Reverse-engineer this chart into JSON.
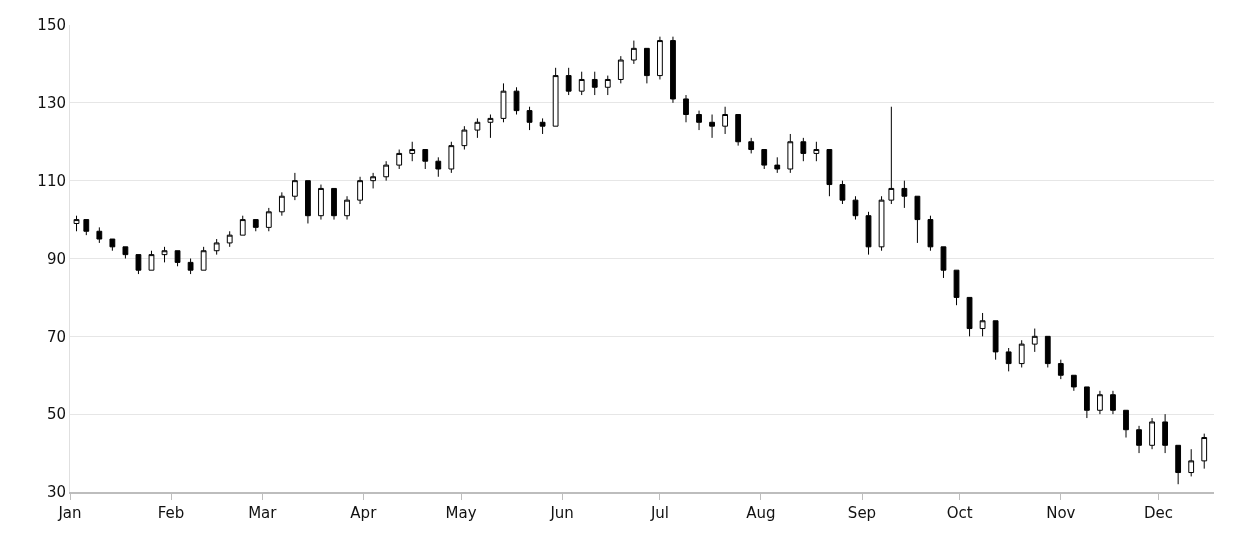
{
  "chart_data": {
    "type": "candlestick",
    "color": "#000000",
    "x": [
      "--01-03",
      "--01-06",
      "--01-10",
      "--01-14",
      "--01-18",
      "--01-22",
      "--01-26",
      "--01-30",
      "--02-03",
      "--02-07",
      "--02-11",
      "--02-15",
      "--02-19",
      "--02-23",
      "--02-27",
      "--03-03",
      "--03-07",
      "--03-11",
      "--03-15",
      "--03-19",
      "--03-23",
      "--03-27",
      "--03-31",
      "--04-04",
      "--04-08",
      "--04-12",
      "--04-16",
      "--04-20",
      "--04-24",
      "--04-28",
      "--05-02",
      "--05-06",
      "--05-10",
      "--05-14",
      "--05-18",
      "--05-22",
      "--05-26",
      "--05-30",
      "--06-03",
      "--06-07",
      "--06-11",
      "--06-15",
      "--06-19",
      "--06-23",
      "--06-27",
      "--07-01",
      "--07-05",
      "--07-09",
      "--07-13",
      "--07-17",
      "--07-21",
      "--07-25",
      "--07-29",
      "--08-02",
      "--08-06",
      "--08-10",
      "--08-14",
      "--08-18",
      "--08-22",
      "--08-26",
      "--08-30",
      "--09-03",
      "--09-07",
      "--09-10",
      "--09-14",
      "--09-18",
      "--09-22",
      "--09-26",
      "--09-30",
      "--10-04",
      "--10-08",
      "--10-12",
      "--10-16",
      "--10-20",
      "--10-24",
      "--10-28",
      "--11-01",
      "--11-05",
      "--11-09",
      "--11-13",
      "--11-17",
      "--11-21",
      "--11-25",
      "--11-29",
      "--12-03",
      "--12-07",
      "--12-11",
      "--12-15"
    ],
    "ohlc": [
      [
        99,
        101,
        97,
        100
      ],
      [
        100,
        100,
        96,
        97
      ],
      [
        97,
        98,
        94,
        95
      ],
      [
        95,
        95,
        92,
        93
      ],
      [
        93,
        93,
        90,
        91
      ],
      [
        91,
        91,
        86,
        87
      ],
      [
        87,
        92,
        87,
        91
      ],
      [
        91,
        93,
        89,
        92
      ],
      [
        92,
        92,
        88,
        89
      ],
      [
        89,
        90,
        86,
        87
      ],
      [
        87,
        93,
        87,
        92
      ],
      [
        92,
        95,
        91,
        94
      ],
      [
        94,
        97,
        93,
        96
      ],
      [
        96,
        101,
        96,
        100
      ],
      [
        100,
        100,
        97,
        98
      ],
      [
        98,
        103,
        97,
        102
      ],
      [
        102,
        107,
        101,
        106
      ],
      [
        106,
        112,
        105,
        110
      ],
      [
        110,
        110,
        99,
        101
      ],
      [
        101,
        109,
        100,
        108
      ],
      [
        108,
        108,
        100,
        101
      ],
      [
        101,
        106,
        100,
        105
      ],
      [
        105,
        111,
        104,
        110
      ],
      [
        110,
        112,
        108,
        111
      ],
      [
        111,
        115,
        110,
        114
      ],
      [
        114,
        118,
        113,
        117
      ],
      [
        117,
        120,
        115,
        118
      ],
      [
        118,
        118,
        113,
        115
      ],
      [
        115,
        116,
        111,
        113
      ],
      [
        113,
        120,
        112,
        119
      ],
      [
        119,
        124,
        118,
        123
      ],
      [
        123,
        126,
        121,
        125
      ],
      [
        125,
        127,
        121,
        126
      ],
      [
        126,
        135,
        125,
        133
      ],
      [
        133,
        134,
        127,
        128
      ],
      [
        128,
        129,
        123,
        125
      ],
      [
        125,
        126,
        122,
        124
      ],
      [
        124,
        139,
        124,
        137
      ],
      [
        137,
        139,
        132,
        133
      ],
      [
        133,
        138,
        132,
        136
      ],
      [
        136,
        138,
        132,
        134
      ],
      [
        134,
        137,
        132,
        136
      ],
      [
        136,
        142,
        135,
        141
      ],
      [
        141,
        146,
        140,
        144
      ],
      [
        144,
        144,
        135,
        137
      ],
      [
        137,
        147,
        136,
        146
      ],
      [
        146,
        147,
        130,
        131
      ],
      [
        131,
        132,
        125,
        127
      ],
      [
        127,
        128,
        123,
        125
      ],
      [
        125,
        127,
        121,
        124
      ],
      [
        124,
        129,
        122,
        127
      ],
      [
        127,
        127,
        119,
        120
      ],
      [
        120,
        121,
        117,
        118
      ],
      [
        118,
        118,
        113,
        114
      ],
      [
        114,
        116,
        112,
        113
      ],
      [
        113,
        122,
        112,
        120
      ],
      [
        120,
        121,
        115,
        117
      ],
      [
        117,
        120,
        115,
        118
      ],
      [
        118,
        118,
        106,
        109
      ],
      [
        109,
        110,
        104,
        105
      ],
      [
        105,
        106,
        100,
        101
      ],
      [
        101,
        102,
        91,
        93
      ],
      [
        93,
        106,
        92,
        105
      ],
      [
        105,
        129,
        104,
        108
      ],
      [
        108,
        110,
        103,
        106
      ],
      [
        106,
        106,
        94,
        100
      ],
      [
        100,
        101,
        92,
        93
      ],
      [
        93,
        93,
        85,
        87
      ],
      [
        87,
        87,
        78,
        80
      ],
      [
        80,
        80,
        70,
        72
      ],
      [
        72,
        76,
        70,
        74
      ],
      [
        74,
        74,
        64,
        66
      ],
      [
        66,
        67,
        61,
        63
      ],
      [
        63,
        69,
        62,
        68
      ],
      [
        68,
        72,
        66,
        70
      ],
      [
        70,
        70,
        62,
        63
      ],
      [
        63,
        64,
        59,
        60
      ],
      [
        60,
        60,
        56,
        57
      ],
      [
        57,
        57,
        49,
        51
      ],
      [
        51,
        56,
        50,
        55
      ],
      [
        55,
        56,
        50,
        51
      ],
      [
        51,
        51,
        44,
        46
      ],
      [
        46,
        47,
        40,
        42
      ],
      [
        42,
        49,
        41,
        48
      ],
      [
        48,
        50,
        40,
        42
      ],
      [
        42,
        42,
        32,
        35
      ],
      [
        35,
        41,
        34,
        38
      ],
      [
        38,
        45,
        36,
        44
      ]
    ],
    "xlim": [
      "--01-01",
      "--12-18"
    ],
    "xticks": [
      {
        "value": "--01-01",
        "label": "Jan"
      },
      {
        "value": "--02-01",
        "label": "Feb"
      },
      {
        "value": "--03-01",
        "label": "Mar"
      },
      {
        "value": "--04-01",
        "label": "Apr"
      },
      {
        "value": "--05-01",
        "label": "May"
      },
      {
        "value": "--06-01",
        "label": "Jun"
      },
      {
        "value": "--07-01",
        "label": "Jul"
      },
      {
        "value": "--08-01",
        "label": "Aug"
      },
      {
        "value": "--09-01",
        "label": "Sep"
      },
      {
        "value": "--10-01",
        "label": "Oct"
      },
      {
        "value": "--11-01",
        "label": "Nov"
      },
      {
        "value": "--12-01",
        "label": "Dec"
      }
    ],
    "ylim": [
      30,
      150
    ],
    "yticks": [
      30,
      50,
      70,
      90,
      110,
      130,
      150
    ],
    "grid": "y",
    "legend": false
  }
}
